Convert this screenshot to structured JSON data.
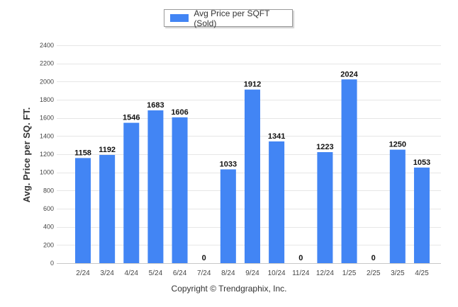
{
  "chart_data": {
    "type": "bar",
    "categories": [
      "2/24",
      "3/24",
      "4/24",
      "5/24",
      "6/24",
      "7/24",
      "8/24",
      "9/24",
      "10/24",
      "11/24",
      "12/24",
      "1/25",
      "2/25",
      "3/25",
      "4/25"
    ],
    "series": [
      {
        "name": "Avg Price per SQFT (Sold)",
        "values": [
          1158,
          1192,
          1546,
          1683,
          1606,
          0,
          1033,
          1912,
          1341,
          0,
          1223,
          2024,
          0,
          1250,
          1053
        ]
      }
    ],
    "data_labels": [
      "1158",
      "1192",
      "1546",
      "1683",
      "1606",
      "0",
      "1033",
      "1912",
      "1341",
      "0",
      "1223",
      "2024",
      "0",
      "1250",
      "1053"
    ],
    "ylabel": "Avg. Price per SQ. FT.",
    "xlabel": "",
    "ylim": [
      0,
      2400
    ],
    "yticks": [
      0,
      200,
      400,
      600,
      800,
      1000,
      1200,
      1400,
      1600,
      1800,
      2000,
      2200,
      2400
    ],
    "ytick_labels": [
      "0",
      "200",
      "400",
      "600",
      "800",
      "1000",
      "1200",
      "1400",
      "1600",
      "1800",
      "2000",
      "2200",
      "2400"
    ],
    "grid": true,
    "legend_position": "top-center",
    "bar_color": "#4285f4"
  },
  "legend": {
    "label": "Avg Price per SQFT (Sold)"
  },
  "footer": {
    "copyright": "Copyright © Trendgraphix, Inc."
  }
}
